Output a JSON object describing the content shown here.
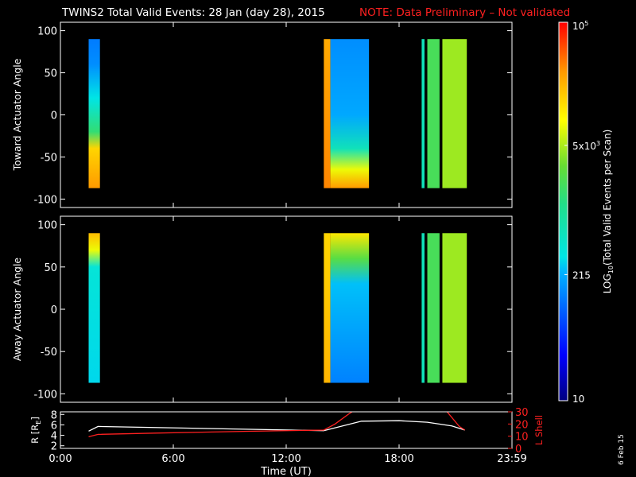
{
  "header": {
    "title": "TWINS2  Total Valid Events: 28 Jan (day  28), 2015",
    "note": "NOTE: Data Preliminary – Not validated",
    "title_color": "#ffffff",
    "note_color": "#ff2020"
  },
  "footer": {
    "stamp": "6 Feb 15"
  },
  "colorbar": {
    "label_main": "LOG",
    "label_sub": "10",
    "label_rest": "(Total Valid  Events per Scan)",
    "ticks": [
      {
        "base": "10",
        "exp": "5",
        "value": 100000
      },
      {
        "base": "5x10",
        "exp": "3",
        "value": 5000
      },
      {
        "base": "215",
        "exp": "",
        "value": 215
      },
      {
        "base": "10",
        "exp": "",
        "value": 10
      }
    ],
    "range": [
      10,
      100000
    ],
    "scale": "log"
  },
  "chart_data": [
    {
      "type": "heatmap",
      "ylabel": "Toward Actuator Angle",
      "yticks": [
        100,
        50,
        0,
        -50,
        -100
      ],
      "ylim": [
        -110,
        110
      ],
      "xlim": [
        0,
        24
      ],
      "blocks": [
        {
          "t0": 1.5,
          "t1": 2.1,
          "a0": -87,
          "a1": 90,
          "stops": [
            [
              90,
              120
            ],
            [
              60,
              150
            ],
            [
              20,
              330
            ],
            [
              -20,
              1500
            ],
            [
              -40,
              15000
            ],
            [
              -87,
              30000
            ]
          ]
        },
        {
          "t0": 14.0,
          "t1": 14.35,
          "a0": -87,
          "a1": 90,
          "stops": [
            [
              90,
              25000
            ],
            [
              -87,
              35000
            ]
          ]
        },
        {
          "t0": 14.35,
          "t1": 16.4,
          "a0": -87,
          "a1": 90,
          "stops": [
            [
              90,
              150
            ],
            [
              0,
              200
            ],
            [
              -40,
              600
            ],
            [
              -65,
              8000
            ],
            [
              -87,
              30000
            ]
          ]
        },
        {
          "t0": 19.2,
          "t1": 19.35,
          "a0": -87,
          "a1": 90,
          "stops": [
            [
              90,
              600
            ],
            [
              -87,
              600
            ]
          ]
        },
        {
          "t0": 19.5,
          "t1": 20.15,
          "a0": -87,
          "a1": 90,
          "stops": [
            [
              90,
              2000
            ],
            [
              -87,
              2000
            ]
          ]
        },
        {
          "t0": 20.3,
          "t1": 21.6,
          "a0": -87,
          "a1": 90,
          "stops": [
            [
              90,
              4500
            ],
            [
              -87,
              4500
            ]
          ]
        }
      ]
    },
    {
      "type": "heatmap",
      "ylabel": "Away Actuator Angle",
      "yticks": [
        100,
        50,
        0,
        -50,
        -100
      ],
      "ylim": [
        -110,
        110
      ],
      "xlim": [
        0,
        24
      ],
      "blocks": [
        {
          "t0": 1.5,
          "t1": 2.1,
          "a0": -87,
          "a1": 90,
          "stops": [
            [
              90,
              20000
            ],
            [
              70,
              8000
            ],
            [
              50,
              400
            ],
            [
              -87,
              300
            ]
          ]
        },
        {
          "t0": 14.0,
          "t1": 14.35,
          "a0": -87,
          "a1": 90,
          "stops": [
            [
              90,
              15000
            ],
            [
              -87,
              22000
            ]
          ]
        },
        {
          "t0": 14.35,
          "t1": 16.4,
          "a0": -87,
          "a1": 90,
          "stops": [
            [
              90,
              12000
            ],
            [
              60,
              2500
            ],
            [
              30,
              250
            ],
            [
              -87,
              130
            ]
          ]
        },
        {
          "t0": 19.2,
          "t1": 19.35,
          "a0": -87,
          "a1": 90,
          "stops": [
            [
              90,
              600
            ],
            [
              -87,
              600
            ]
          ]
        },
        {
          "t0": 19.5,
          "t1": 20.15,
          "a0": -87,
          "a1": 90,
          "stops": [
            [
              90,
              2000
            ],
            [
              -87,
              2000
            ]
          ]
        },
        {
          "t0": 20.3,
          "t1": 21.6,
          "a0": -87,
          "a1": 90,
          "stops": [
            [
              90,
              4500
            ],
            [
              -87,
              4500
            ]
          ]
        }
      ]
    },
    {
      "type": "line",
      "xlabel": "Time (UT)",
      "xticks": [
        "0:00",
        "6:00",
        "12:00",
        "18:00",
        "23:59"
      ],
      "xlim": [
        0,
        24
      ],
      "ylabel_left": "R [R",
      "ylabel_left_sub": "E",
      "ylabel_left_end": "]",
      "yticks_left": [
        8,
        6,
        4,
        2
      ],
      "ylim_left": [
        1.5,
        8.5
      ],
      "ylabel_right": "L Shell",
      "yticks_right": [
        30,
        20,
        10,
        0
      ],
      "ylim_right": [
        0,
        30
      ],
      "series": [
        {
          "axis": "left",
          "color": "#ffffff",
          "x": [
            1.5,
            2.0,
            14.0,
            16.0,
            18.0,
            19.5,
            20.8,
            21.5
          ],
          "y": [
            4.8,
            5.7,
            4.9,
            6.7,
            6.8,
            6.5,
            5.8,
            5.0
          ]
        },
        {
          "axis": "right",
          "color": "#ff2020",
          "x": [
            1.5,
            2.0,
            5.0,
            10.0,
            14.0,
            14.6,
            15.3,
            15.6
          ],
          "y": [
            9.5,
            11.5,
            12.5,
            14.0,
            15.0,
            20.0,
            28.0,
            31.0
          ]
        },
        {
          "axis": "right",
          "color": "#ff2020",
          "x": [
            20.5,
            21.2,
            21.5
          ],
          "y": [
            31.0,
            18.0,
            15.0
          ]
        }
      ]
    }
  ]
}
